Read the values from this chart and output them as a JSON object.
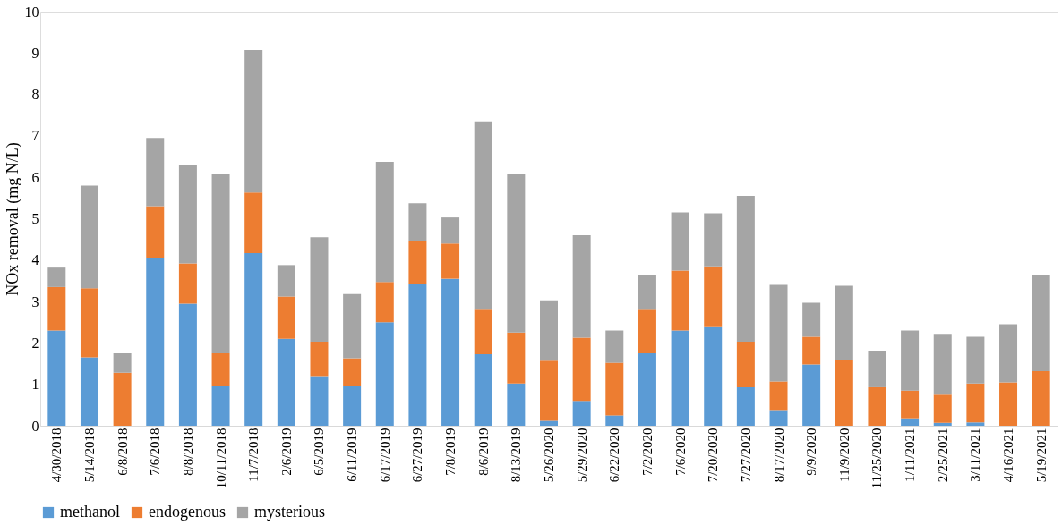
{
  "chart_data": {
    "type": "bar",
    "stacked": true,
    "ylabel": "NOx removal (mg N/L)",
    "categories": [
      "4/30/2018",
      "5/14/2018",
      "6/8/2018",
      "7/6/2018",
      "8/8/2018",
      "10/11/2018",
      "11/7/2018",
      "2/6/2019",
      "6/5/2019",
      "6/11/2019",
      "6/17/2019",
      "6/27/2019",
      "7/8/2019",
      "8/6/2019",
      "8/13/2019",
      "5/26/2020",
      "5/29/2020",
      "6/22/2020",
      "7/2/2020",
      "7/6/2020",
      "7/20/2020",
      "7/27/2020",
      "8/17/2020",
      "9/9/2020",
      "11/9/2020",
      "11/25/2020",
      "1/11/2021",
      "2/25/2021",
      "3/11/2021",
      "4/16/2021",
      "5/19/2021"
    ],
    "series": [
      {
        "name": "methanol",
        "color": "#5b9bd5",
        "values": [
          2.3,
          1.65,
          0,
          4.05,
          2.95,
          0.95,
          4.17,
          2.1,
          1.2,
          0.95,
          2.5,
          3.42,
          3.55,
          1.73,
          1.02,
          0.12,
          0.6,
          0.25,
          1.75,
          2.3,
          2.38,
          0.93,
          0.38,
          1.48,
          0,
          0,
          0.18,
          0.07,
          0.08,
          0,
          0
        ]
      },
      {
        "name": "endogenous",
        "color": "#ed7d31",
        "values": [
          1.05,
          1.67,
          1.28,
          1.25,
          0.97,
          0.8,
          1.46,
          1.02,
          0.83,
          0.68,
          0.97,
          1.03,
          0.85,
          1.07,
          1.23,
          1.45,
          1.53,
          1.27,
          1.05,
          1.45,
          1.47,
          1.1,
          0.69,
          0.67,
          1.6,
          0.93,
          0.67,
          0.68,
          0.94,
          1.05,
          1.32
        ]
      },
      {
        "name": "mysterious",
        "color": "#a5a5a5",
        "values": [
          0.47,
          2.48,
          0.47,
          1.65,
          2.38,
          4.32,
          3.44,
          0.76,
          2.52,
          1.55,
          2.9,
          0.92,
          0.63,
          4.55,
          3.83,
          1.46,
          2.47,
          0.78,
          0.85,
          1.4,
          1.28,
          3.52,
          2.33,
          0.82,
          1.78,
          0.87,
          1.45,
          1.45,
          1.13,
          1.4,
          2.33
        ]
      }
    ],
    "ylim": [
      0,
      10
    ],
    "yticks": [
      0,
      1,
      2,
      3,
      4,
      5,
      6,
      7,
      8,
      9,
      10
    ],
    "grid": false,
    "legend": "bottom"
  }
}
